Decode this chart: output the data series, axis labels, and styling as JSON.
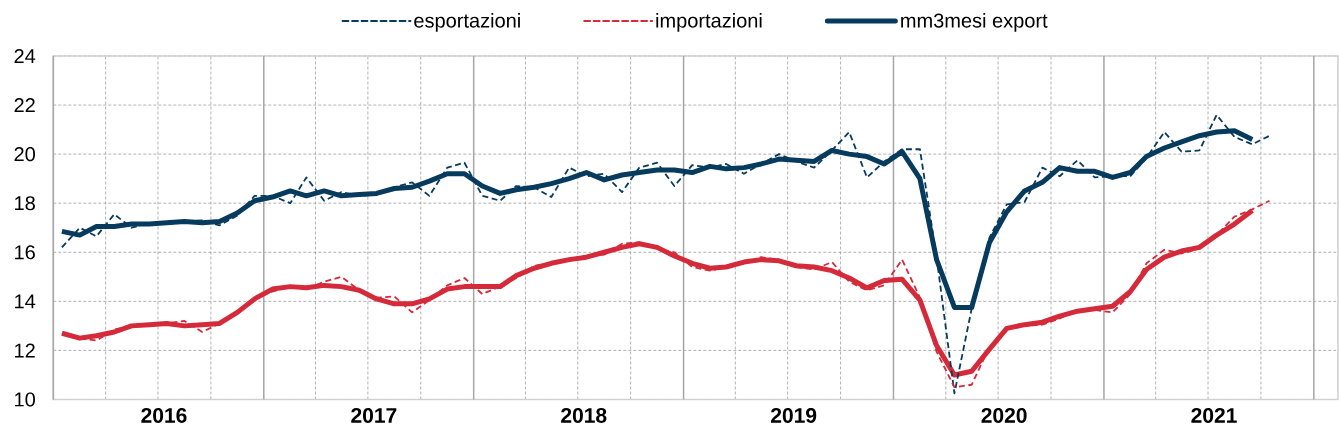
{
  "chart_data": {
    "type": "line",
    "x": [
      "2016-01-16",
      "2016-02-16",
      "2016-03-16",
      "2016-04-16",
      "2016-05-16",
      "2016-06-16",
      "2016-07-16",
      "2016-08-16",
      "2016-09-16",
      "2016-10-16",
      "2016-11-16",
      "2016-12-16",
      "2017-01-16",
      "2017-02-16",
      "2017-03-16",
      "2017-04-16",
      "2017-05-16",
      "2017-06-16",
      "2017-07-16",
      "2017-08-16",
      "2017-09-16",
      "2017-10-16",
      "2017-11-16",
      "2017-12-16",
      "2018-01-16",
      "2018-02-16",
      "2018-03-16",
      "2018-04-16",
      "2018-05-16",
      "2018-06-16",
      "2018-07-16",
      "2018-08-16",
      "2018-09-16",
      "2018-10-16",
      "2018-11-16",
      "2018-12-16",
      "2019-01-16",
      "2019-02-16",
      "2019-03-16",
      "2019-04-16",
      "2019-05-16",
      "2019-06-16",
      "2019-07-16",
      "2019-08-16",
      "2019-09-16",
      "2019-10-16",
      "2019-11-16",
      "2019-12-16",
      "2020-01-16",
      "2020-02-16",
      "2020-03-16",
      "2020-04-16",
      "2020-05-16",
      "2020-06-16",
      "2020-07-16",
      "2020-08-16",
      "2020-09-16",
      "2020-10-16",
      "2020-11-16",
      "2020-12-16",
      "2021-01-16",
      "2021-02-16",
      "2021-03-16",
      "2021-04-16",
      "2021-05-16",
      "2021-06-16",
      "2021-07-16",
      "2021-08-16",
      "2021-09-16",
      "2021-10-16"
    ],
    "series": [
      {
        "name": "esportazioni",
        "color": "#063b5e",
        "line_style": "dashed",
        "values": [
          16.2,
          17.0,
          16.65,
          17.55,
          17.0,
          17.2,
          17.15,
          17.25,
          17.3,
          17.1,
          17.5,
          18.3,
          18.3,
          18.0,
          19.05,
          18.1,
          18.45,
          18.3,
          18.35,
          18.65,
          18.85,
          18.3,
          19.45,
          19.65,
          18.3,
          18.1,
          18.7,
          18.65,
          18.25,
          19.45,
          19.1,
          19.2,
          18.45,
          19.45,
          19.65,
          18.7,
          19.55,
          19.45,
          19.6,
          19.2,
          19.6,
          20.0,
          19.7,
          19.45,
          20.15,
          20.9,
          19.05,
          19.7,
          20.2,
          20.2,
          15.8,
          10.25,
          13.7,
          16.6,
          17.95,
          18.05,
          19.45,
          19.1,
          19.75,
          19.05,
          19.1,
          19.1,
          19.85,
          20.9,
          20.1,
          20.15,
          21.6,
          20.7,
          20.4,
          20.75
        ]
      },
      {
        "name": "importazioni",
        "color": "#d42a3a",
        "line_style": "dashed",
        "values": [
          12.7,
          12.5,
          12.4,
          12.85,
          13.0,
          13.05,
          13.1,
          13.2,
          12.75,
          13.1,
          13.5,
          14.1,
          14.4,
          14.6,
          14.5,
          14.8,
          15.0,
          14.45,
          14.15,
          14.2,
          13.55,
          14.05,
          14.65,
          14.95,
          14.3,
          14.6,
          14.95,
          15.45,
          15.55,
          15.7,
          15.85,
          15.9,
          16.35,
          16.4,
          16.15,
          16.0,
          15.4,
          15.25,
          15.4,
          15.55,
          15.8,
          15.7,
          15.4,
          15.3,
          15.6,
          14.8,
          14.45,
          14.65,
          15.7,
          14.15,
          11.95,
          10.5,
          10.6,
          12.15,
          12.85,
          13.0,
          13.05,
          13.3,
          13.65,
          13.65,
          13.55,
          14.3,
          15.55,
          16.1,
          15.95,
          16.15,
          16.7,
          17.45,
          17.75,
          18.1
        ]
      },
      {
        "name": "mm3mesi export",
        "color": "#063b5e",
        "line_style": "solid",
        "values": [
          16.85,
          16.7,
          17.05,
          17.05,
          17.15,
          17.15,
          17.2,
          17.25,
          17.2,
          17.25,
          17.6,
          18.1,
          18.25,
          18.5,
          18.3,
          18.5,
          18.3,
          18.35,
          18.4,
          18.6,
          18.65,
          18.9,
          19.2,
          19.2,
          18.7,
          18.4,
          18.55,
          18.65,
          18.8,
          19.0,
          19.25,
          18.95,
          19.15,
          19.25,
          19.35,
          19.35,
          19.25,
          19.5,
          19.4,
          19.45,
          19.6,
          19.8,
          19.75,
          19.7,
          20.15,
          20.0,
          19.9,
          19.6,
          20.1,
          19.0,
          15.7,
          13.75,
          13.75,
          16.4,
          17.65,
          18.5,
          18.85,
          19.45,
          19.3,
          19.3,
          19.05,
          19.25,
          19.9,
          20.25,
          20.5,
          20.75,
          20.9,
          20.95,
          20.6,
          null
        ]
      },
      {
        "color": "#d42a3a",
        "line_style": "solid",
        "values": [
          12.7,
          12.5,
          12.6,
          12.75,
          13.0,
          13.05,
          13.1,
          13.0,
          13.05,
          13.1,
          13.55,
          14.1,
          14.5,
          14.6,
          14.55,
          14.65,
          14.6,
          14.45,
          14.1,
          13.9,
          13.9,
          14.1,
          14.5,
          14.6,
          14.6,
          14.6,
          15.05,
          15.35,
          15.55,
          15.7,
          15.8,
          16.0,
          16.2,
          16.35,
          16.2,
          15.85,
          15.55,
          15.35,
          15.4,
          15.6,
          15.7,
          15.65,
          15.45,
          15.4,
          15.25,
          14.95,
          14.55,
          14.85,
          14.9,
          14.05,
          12.2,
          11.0,
          11.15,
          12.05,
          12.9,
          13.05,
          13.15,
          13.4,
          13.6,
          13.7,
          13.8,
          14.4,
          15.3,
          15.8,
          16.05,
          16.2,
          16.7,
          17.15,
          17.7,
          null
        ]
      }
    ],
    "xlim": [
      "2016-01-01",
      "2022-02-12"
    ],
    "xticks": [
      {
        "value": "2016-01-01",
        "label": null
      },
      {
        "value": "2016-04-01",
        "label": null
      },
      {
        "value": "2016-07-01",
        "label": "2016"
      },
      {
        "value": "2016-10-01",
        "label": null
      },
      {
        "value": "2017-01-01",
        "label": null
      },
      {
        "value": "2017-04-01",
        "label": null
      },
      {
        "value": "2017-07-01",
        "label": "2017"
      },
      {
        "value": "2017-10-01",
        "label": null
      },
      {
        "value": "2018-01-01",
        "label": null
      },
      {
        "value": "2018-04-01",
        "label": null
      },
      {
        "value": "2018-07-01",
        "label": "2018"
      },
      {
        "value": "2018-10-01",
        "label": null
      },
      {
        "value": "2019-01-01",
        "label": null
      },
      {
        "value": "2019-04-01",
        "label": null
      },
      {
        "value": "2019-07-01",
        "label": "2019"
      },
      {
        "value": "2019-10-01",
        "label": null
      },
      {
        "value": "2020-01-01",
        "label": null
      },
      {
        "value": "2020-04-01",
        "label": null
      },
      {
        "value": "2020-07-01",
        "label": "2020"
      },
      {
        "value": "2020-10-01",
        "label": null
      },
      {
        "value": "2021-01-01",
        "label": null
      },
      {
        "value": "2021-04-01",
        "label": null
      },
      {
        "value": "2021-07-01",
        "label": "2021"
      },
      {
        "value": "2021-10-01",
        "label": null
      },
      {
        "value": "2022-01-01",
        "label": null
      }
    ],
    "ylim": [
      10,
      24
    ],
    "yticks": [
      10,
      12,
      14,
      16,
      18,
      20,
      22,
      24
    ],
    "grid": true,
    "legend": "top"
  }
}
